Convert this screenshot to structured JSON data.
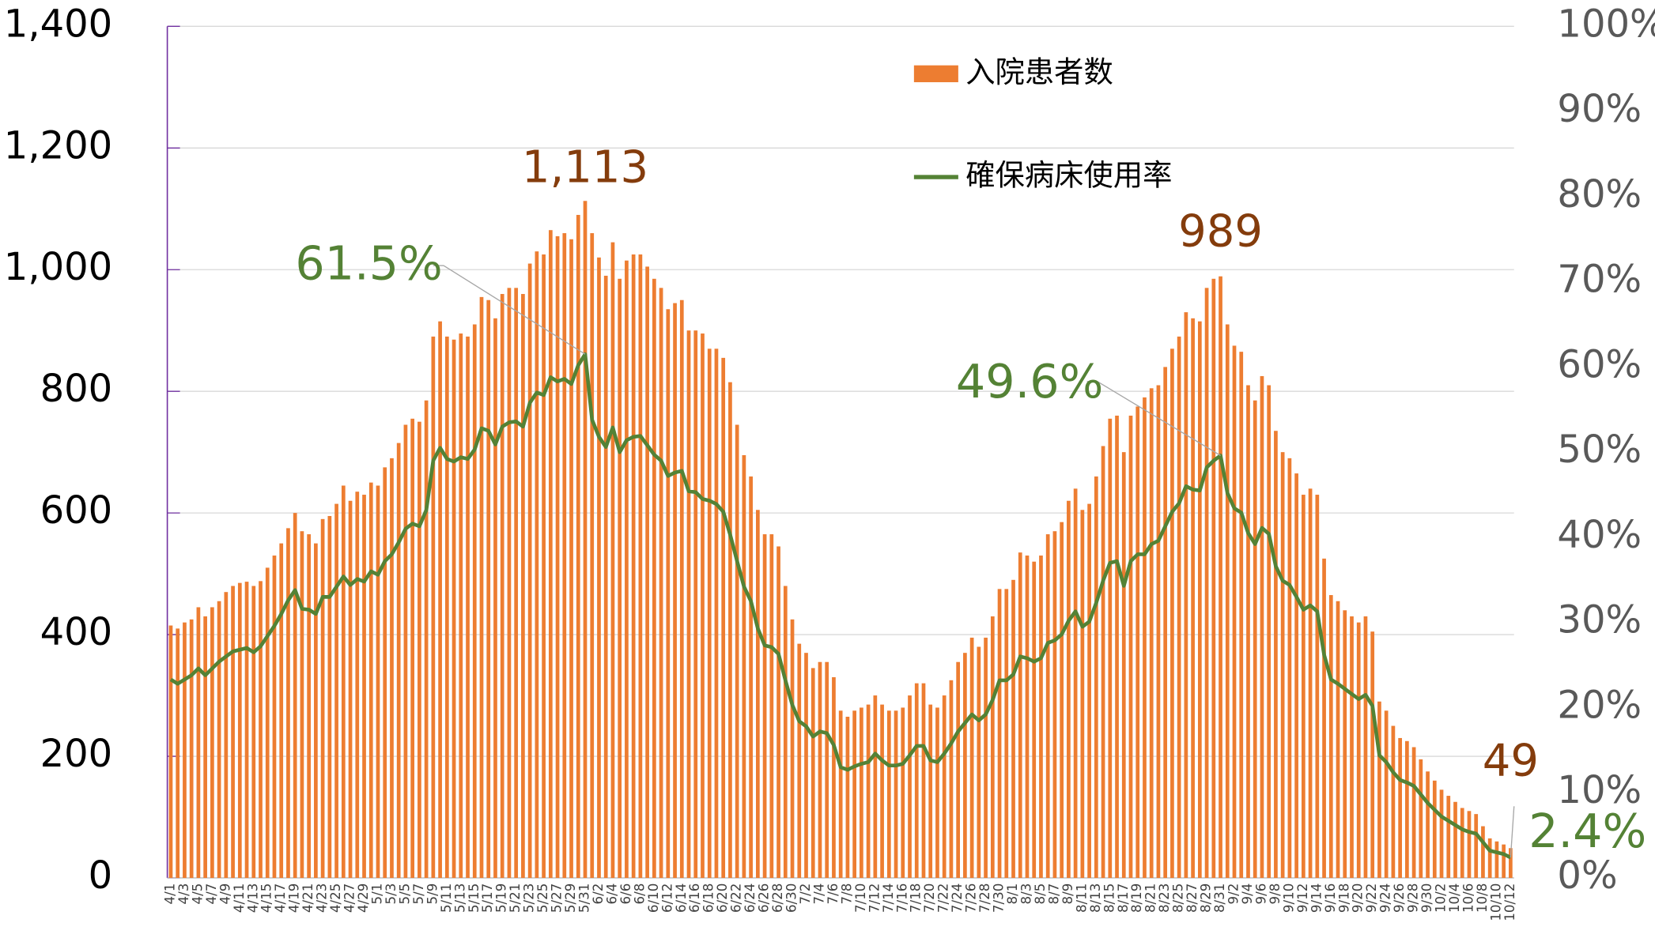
{
  "chart_data": {
    "type": "bar_line",
    "categories": [
      "4/1",
      null,
      "4/3",
      null,
      "4/5",
      null,
      "4/7",
      null,
      "4/9",
      null,
      "4/11",
      null,
      "4/13",
      null,
      "4/15",
      null,
      "4/17",
      null,
      "4/19",
      null,
      "4/21",
      null,
      "4/23",
      null,
      "4/25",
      null,
      "4/27",
      null,
      "4/29",
      null,
      "5/1",
      null,
      "5/3",
      null,
      "5/5",
      null,
      "5/7",
      null,
      "5/9",
      null,
      "5/11",
      null,
      "5/13",
      null,
      "5/15",
      null,
      "5/17",
      null,
      "5/19",
      null,
      "5/21",
      null,
      "5/23",
      null,
      "5/25",
      null,
      "5/27",
      null,
      "5/29",
      null,
      "5/31",
      null,
      "6/2",
      null,
      "6/4",
      null,
      "6/6",
      null,
      "6/8",
      null,
      "6/10",
      null,
      "6/12",
      null,
      "6/14",
      null,
      "6/16",
      null,
      "6/18",
      null,
      "6/20",
      null,
      "6/22",
      null,
      "6/24",
      null,
      "6/26",
      null,
      "6/28",
      null,
      "6/30",
      null,
      "7/2",
      null,
      "7/4",
      null,
      "7/6",
      null,
      "7/8",
      null,
      "7/10",
      null,
      "7/12",
      null,
      "7/14",
      null,
      "7/16",
      null,
      "7/18",
      null,
      "7/20",
      null,
      "7/22",
      null,
      "7/24",
      null,
      "7/26",
      null,
      "7/28",
      null,
      "7/30",
      null,
      "8/1",
      null,
      "8/3",
      null,
      "8/5",
      null,
      "8/7",
      null,
      "8/9",
      null,
      "8/11",
      null,
      "8/13",
      null,
      "8/15",
      null,
      "8/17",
      null,
      "8/19",
      null,
      "8/21",
      null,
      "8/23",
      null,
      "8/25",
      null,
      "8/27",
      null,
      "8/29",
      null,
      "8/31",
      null,
      "9/2",
      null,
      "9/4",
      null,
      "9/6",
      null,
      "9/8",
      null,
      "9/10",
      null,
      "9/12",
      null,
      "9/14",
      null,
      "9/16",
      null,
      "9/18",
      null,
      "9/20",
      null,
      "9/22",
      null,
      "9/24",
      null,
      "9/26",
      null,
      "9/28",
      null,
      "9/30",
      null,
      "10/2",
      null,
      "10/4",
      null,
      "10/6",
      null,
      "10/8",
      null,
      "10/10",
      null,
      "10/12"
    ],
    "series": [
      {
        "name": "入院患者数",
        "type": "bar",
        "color": "#ED7D31",
        "values": [
          415,
          410,
          420,
          425,
          445,
          430,
          445,
          455,
          470,
          480,
          485,
          487,
          480,
          488,
          510,
          530,
          550,
          575,
          600,
          570,
          565,
          550,
          590,
          595,
          615,
          645,
          620,
          635,
          630,
          650,
          645,
          675,
          690,
          715,
          745,
          755,
          750,
          785,
          890,
          915,
          890,
          885,
          895,
          890,
          910,
          955,
          950,
          920,
          960,
          970,
          970,
          960,
          1010,
          1030,
          1025,
          1065,
          1055,
          1060,
          1050,
          1090,
          1113,
          1060,
          1020,
          990,
          1045,
          985,
          1015,
          1025,
          1025,
          1005,
          985,
          970,
          935,
          945,
          950,
          900,
          900,
          895,
          870,
          870,
          855,
          815,
          745,
          695,
          660,
          605,
          565,
          565,
          545,
          480,
          425,
          385,
          370,
          345,
          355,
          355,
          330,
          275,
          265,
          275,
          280,
          285,
          300,
          285,
          275,
          275,
          280,
          300,
          320,
          320,
          285,
          280,
          300,
          325,
          355,
          370,
          395,
          380,
          395,
          430,
          475,
          475,
          490,
          535,
          530,
          520,
          530,
          565,
          570,
          585,
          620,
          640,
          605,
          615,
          660,
          710,
          755,
          760,
          700,
          760,
          775,
          790,
          805,
          810,
          840,
          870,
          890,
          930,
          920,
          915,
          970,
          985,
          989,
          910,
          875,
          865,
          810,
          785,
          825,
          810,
          735,
          700,
          690,
          665,
          630,
          640,
          630,
          525,
          465,
          455,
          440,
          430,
          420,
          430,
          405,
          290,
          275,
          250,
          230,
          225,
          215,
          195,
          175,
          160,
          145,
          135,
          125,
          115,
          110,
          105,
          85,
          65,
          60,
          55,
          49
        ],
        "value_labels": [
          null,
          null,
          null,
          null,
          null,
          null,
          null,
          null,
          null,
          null,
          null,
          null,
          null,
          null,
          null,
          null,
          null,
          null,
          null,
          null,
          null,
          null,
          null,
          null,
          null,
          null,
          null,
          null,
          null,
          null,
          null,
          null,
          null,
          null,
          null,
          null,
          null,
          null,
          null,
          null,
          null,
          null,
          null,
          null,
          null,
          null,
          null,
          null,
          null,
          null,
          null,
          null,
          null,
          null,
          null,
          null,
          null,
          null,
          null,
          null,
          "1,113",
          null,
          null,
          null,
          null,
          null,
          null,
          null,
          null,
          null,
          null,
          null,
          null,
          null,
          null,
          null,
          null,
          null,
          null,
          null,
          null,
          null,
          null,
          null,
          null,
          null,
          null,
          null,
          null,
          null,
          null,
          null,
          null,
          null,
          null,
          null,
          null,
          null,
          null,
          null,
          null,
          null,
          null,
          null,
          null,
          null,
          null,
          null,
          null,
          null,
          null,
          null,
          null,
          null,
          null,
          null,
          null,
          null,
          null,
          null,
          null,
          null,
          null,
          null,
          null,
          null,
          null,
          null,
          null,
          null,
          null,
          null,
          null,
          null,
          null,
          null,
          null,
          null,
          null,
          null,
          null,
          null,
          null,
          null,
          null,
          null,
          null,
          null,
          null,
          null,
          null,
          null,
          "989",
          null,
          null,
          null,
          null,
          null,
          null,
          null,
          null,
          null,
          null,
          null,
          null,
          null,
          null,
          null,
          null,
          null,
          null,
          null,
          null,
          null,
          null,
          null,
          null,
          null,
          null,
          null,
          null,
          null,
          null,
          null,
          null,
          null,
          null,
          null,
          null,
          null,
          null,
          null,
          null,
          null,
          "49"
        ]
      },
      {
        "name": "確保病床使用率",
        "type": "line",
        "axis": "y2",
        "color": "#548235",
        "values": [
          23.3,
          22.8,
          23.3,
          23.8,
          24.6,
          23.8,
          24.6,
          25.4,
          26.0,
          26.6,
          26.8,
          27.0,
          26.5,
          27.2,
          28.4,
          29.6,
          31.0,
          32.6,
          33.8,
          31.6,
          31.5,
          31.0,
          33.0,
          33.0,
          34.2,
          35.4,
          34.4,
          35.1,
          34.8,
          36.0,
          35.6,
          37.2,
          38.0,
          39.4,
          41.0,
          41.6,
          41.3,
          43.2,
          49.0,
          50.5,
          49.2,
          48.9,
          49.4,
          49.2,
          50.3,
          52.8,
          52.5,
          50.9,
          53.0,
          53.5,
          53.6,
          53.0,
          55.8,
          57.0,
          56.7,
          58.8,
          58.3,
          58.6,
          58.0,
          60.2,
          61.5,
          53.8,
          51.8,
          50.6,
          52.9,
          50.0,
          51.4,
          51.8,
          51.9,
          50.8,
          49.7,
          49.0,
          47.2,
          47.6,
          47.8,
          45.4,
          45.3,
          44.5,
          44.3,
          43.9,
          43.0,
          40.3,
          37.2,
          34.2,
          32.5,
          29.3,
          27.3,
          27.1,
          26.3,
          23.2,
          20.3,
          18.4,
          17.8,
          16.6,
          17.2,
          17.0,
          15.6,
          13.0,
          12.7,
          13.1,
          13.4,
          13.6,
          14.6,
          13.8,
          13.2,
          13.2,
          13.4,
          14.4,
          15.5,
          15.5,
          13.8,
          13.6,
          14.6,
          15.8,
          17.2,
          18.2,
          19.2,
          18.5,
          19.2,
          20.9,
          23.2,
          23.2,
          23.9,
          26.0,
          25.8,
          25.4,
          25.8,
          27.6,
          27.9,
          28.6,
          30.2,
          31.3,
          29.5,
          30.1,
          32.3,
          34.9,
          37.0,
          37.2,
          34.3,
          37.2,
          38.0,
          38.0,
          39.2,
          39.6,
          41.3,
          43.0,
          44.0,
          46.0,
          45.6,
          45.5,
          48.2,
          49.0,
          49.6,
          45.2,
          43.4,
          42.9,
          40.5,
          39.2,
          41.1,
          40.4,
          36.6,
          34.9,
          34.4,
          33.0,
          31.5,
          32.0,
          31.3,
          26.2,
          23.3,
          22.8,
          22.2,
          21.6,
          21.0,
          21.5,
          20.2,
          14.4,
          13.6,
          12.4,
          11.5,
          11.2,
          10.8,
          9.8,
          8.8,
          8.0,
          7.2,
          6.7,
          6.2,
          5.7,
          5.4,
          5.2,
          4.2,
          3.2,
          3.0,
          2.8,
          2.4
        ],
        "value_labels": [
          null,
          null,
          null,
          null,
          null,
          null,
          null,
          null,
          null,
          null,
          null,
          null,
          null,
          null,
          null,
          null,
          null,
          null,
          null,
          null,
          null,
          null,
          null,
          null,
          null,
          null,
          null,
          null,
          null,
          null,
          null,
          null,
          null,
          null,
          null,
          null,
          null,
          null,
          null,
          null,
          null,
          null,
          null,
          null,
          null,
          null,
          null,
          null,
          null,
          null,
          null,
          null,
          null,
          null,
          null,
          null,
          null,
          null,
          null,
          null,
          "61.5%",
          null,
          null,
          null,
          null,
          null,
          null,
          null,
          null,
          null,
          null,
          null,
          null,
          null,
          null,
          null,
          null,
          null,
          null,
          null,
          null,
          null,
          null,
          null,
          null,
          null,
          null,
          null,
          null,
          null,
          null,
          null,
          null,
          null,
          null,
          null,
          null,
          null,
          null,
          null,
          null,
          null,
          null,
          null,
          null,
          null,
          null,
          null,
          null,
          null,
          null,
          null,
          null,
          null,
          null,
          null,
          null,
          null,
          null,
          null,
          null,
          null,
          null,
          null,
          null,
          null,
          null,
          null,
          null,
          null,
          null,
          null,
          null,
          null,
          null,
          null,
          null,
          null,
          null,
          null,
          null,
          null,
          null,
          null,
          null,
          null,
          null,
          null,
          null,
          null,
          null,
          null,
          "49.6%",
          null,
          null,
          null,
          null,
          null,
          null,
          null,
          null,
          null,
          null,
          null,
          null,
          null,
          null,
          null,
          null,
          null,
          null,
          null,
          null,
          null,
          null,
          null,
          null,
          null,
          null,
          null,
          null,
          null,
          null,
          null,
          null,
          null,
          null,
          null,
          null,
          null,
          null,
          null,
          null,
          null,
          "2.4%"
        ]
      }
    ],
    "ylim": [
      0,
      1400
    ],
    "yticks": [
      0,
      200,
      400,
      600,
      800,
      {
        "value": 1000,
        "label": "1,000"
      },
      {
        "value": 1200,
        "label": "1,200"
      },
      {
        "value": 1400,
        "label": "1,400"
      }
    ],
    "y2lim": [
      0,
      100
    ],
    "y2ticks": [
      {
        "value": 0,
        "label": "0%"
      },
      {
        "value": 10,
        "label": "10%"
      },
      {
        "value": 20,
        "label": "20%"
      },
      {
        "value": 30,
        "label": "30%"
      },
      {
        "value": 40,
        "label": "40%"
      },
      {
        "value": 50,
        "label": "50%"
      },
      {
        "value": 60,
        "label": "60%"
      },
      {
        "value": 70,
        "label": "70%"
      },
      {
        "value": 80,
        "label": "80%"
      },
      {
        "value": 90,
        "label": "90%"
      },
      {
        "value": 100,
        "label": "100%"
      }
    ],
    "grid": true
  }
}
